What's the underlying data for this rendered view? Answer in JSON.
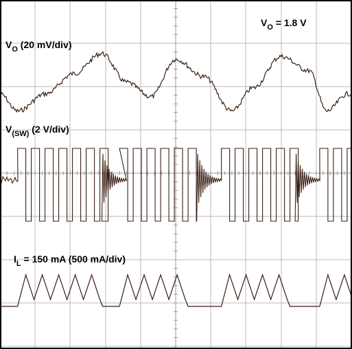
{
  "chart_data": {
    "type": "line",
    "title": "",
    "grid": true,
    "colors": {
      "background": "#ffffff",
      "grid": "#b8b8b8",
      "trace": "#3a1f12",
      "frame": "#000000"
    },
    "annotations": {
      "vo_set": {
        "main": "V",
        "sub": "O",
        "rest": " = 1.8 V"
      },
      "vo_trace": {
        "main": "V",
        "sub": "O",
        "rest": "  (20 mV/div)"
      },
      "sw_trace": {
        "main": "V",
        "sub": "(SW)",
        "rest": "  (2 V/div)"
      },
      "il_trace": {
        "main": "I",
        "sub": "L",
        "rest": " = 150 mA  (500 mA/div)"
      }
    },
    "series": [
      {
        "name": "VO",
        "scale": "20 mV/div",
        "description": "output voltage ripple, roughly sinusoidal",
        "x_div": [
          0,
          0.5,
          1.3,
          2.1,
          2.9,
          3.6,
          4.3,
          5.0,
          5.8,
          6.6,
          7.2,
          8.0,
          8.8,
          9.3,
          9.9
        ],
        "y_div": [
          -0.3,
          -0.9,
          -0.3,
          0.4,
          1.1,
          0.1,
          -0.4,
          0.9,
          0.3,
          -0.9,
          -0.1,
          1.0,
          0.5,
          -0.9,
          -0.3
        ]
      },
      {
        "name": "V(SW)",
        "scale": "2 V/div",
        "description": "switch node voltage: bursts of square pulses separated by ringing",
        "levels_div": {
          "high": 1.0,
          "low": -1.5,
          "idle": -0.2
        },
        "bursts_div": [
          [
            0.5,
            2.9
          ],
          [
            3.4,
            5.6
          ],
          [
            6.3,
            8.4
          ],
          [
            9.1,
            10.0
          ]
        ]
      },
      {
        "name": "IL",
        "scale": "500 mA/div",
        "description": "inductor current: triangular ripple during bursts, zero between",
        "peak_div": 1.0,
        "valley_div": 0.1,
        "baseline_div": 0.0,
        "bursts_div": [
          [
            0.5,
            2.9
          ],
          [
            3.4,
            5.6
          ],
          [
            6.3,
            8.4
          ],
          [
            9.1,
            10.0
          ]
        ]
      }
    ]
  }
}
